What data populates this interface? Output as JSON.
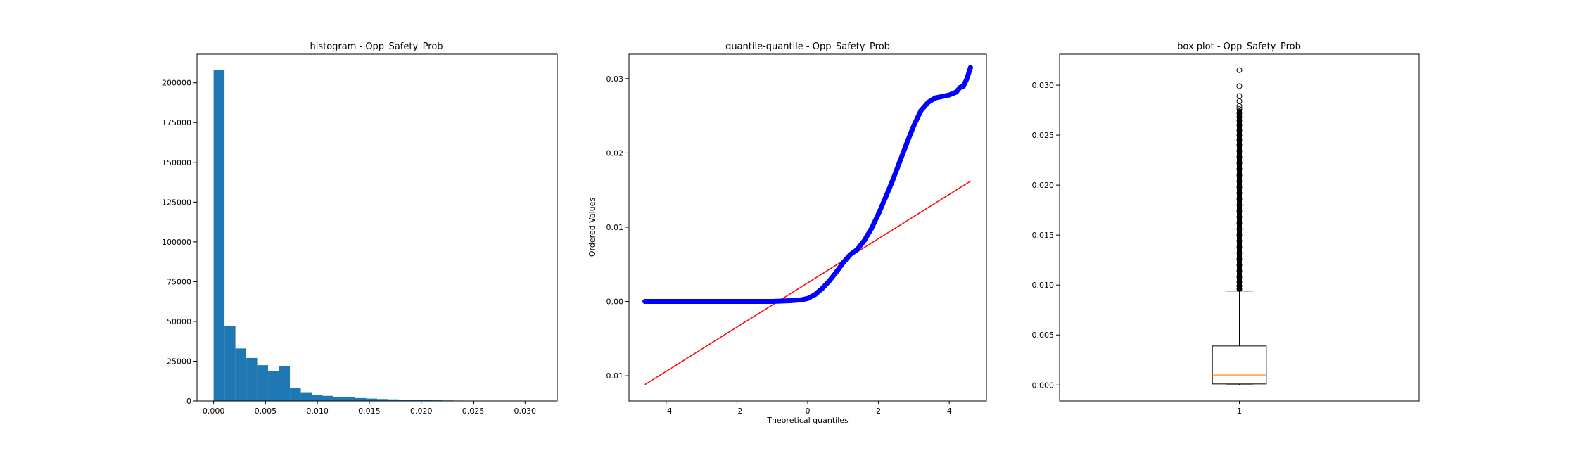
{
  "chart_data": [
    {
      "type": "bar",
      "title": "histogram - Opp_Safety_Prob",
      "xlabel": "",
      "ylabel": "",
      "bin_start": 0.0,
      "bin_width": 0.00105,
      "values": [
        208000,
        47000,
        33000,
        27000,
        22500,
        19000,
        22000,
        8000,
        5500,
        4000,
        3200,
        2600,
        2200,
        1800,
        1500,
        1200,
        1000,
        800,
        650,
        500,
        400,
        320,
        250,
        200,
        150,
        110,
        70,
        40,
        20,
        10
      ],
      "color": "#1f77b4",
      "xlim": [
        -0.0016,
        0.0331
      ],
      "ylim": [
        0,
        218000
      ],
      "xticks": [
        0.0,
        0.005,
        0.01,
        0.015,
        0.02,
        0.025,
        0.03
      ],
      "xtick_labels": [
        "0.000",
        "0.005",
        "0.010",
        "0.015",
        "0.020",
        "0.025",
        "0.030"
      ],
      "yticks": [
        0,
        25000,
        50000,
        75000,
        100000,
        125000,
        150000,
        175000,
        200000
      ],
      "ytick_labels": [
        "0",
        "25000",
        "50000",
        "75000",
        "100000",
        "125000",
        "150000",
        "175000",
        "200000"
      ]
    },
    {
      "type": "scatter",
      "title": "quantile-quantile - Opp_Safety_Prob",
      "xlabel": "Theoretical quantiles",
      "ylabel": "Ordered Values",
      "points": [
        [
          -4.6,
          0.0
        ],
        [
          -4.3,
          0.0
        ],
        [
          -4.1,
          0.0
        ],
        [
          -3.5,
          0.0
        ],
        [
          -3.0,
          0.0
        ],
        [
          -2.5,
          0.0
        ],
        [
          -2.0,
          0.0
        ],
        [
          -1.5,
          0.0
        ],
        [
          -1.0,
          0.0
        ],
        [
          -0.5,
          0.0001
        ],
        [
          -0.2,
          0.0002
        ],
        [
          0.0,
          0.0004
        ],
        [
          0.2,
          0.0009
        ],
        [
          0.4,
          0.0017
        ],
        [
          0.6,
          0.0027
        ],
        [
          0.8,
          0.0039
        ],
        [
          1.0,
          0.0052
        ],
        [
          1.2,
          0.0063
        ],
        [
          1.4,
          0.007
        ],
        [
          1.6,
          0.0082
        ],
        [
          1.8,
          0.0098
        ],
        [
          2.0,
          0.0118
        ],
        [
          2.2,
          0.014
        ],
        [
          2.4,
          0.0163
        ],
        [
          2.6,
          0.0188
        ],
        [
          2.8,
          0.0213
        ],
        [
          3.0,
          0.0237
        ],
        [
          3.2,
          0.0257
        ],
        [
          3.4,
          0.0268
        ],
        [
          3.6,
          0.0274
        ],
        [
          3.8,
          0.0276
        ],
        [
          4.0,
          0.0278
        ],
        [
          4.2,
          0.0282
        ],
        [
          4.3,
          0.0288
        ],
        [
          4.4,
          0.029
        ],
        [
          4.5,
          0.03
        ],
        [
          4.6,
          0.0315
        ]
      ],
      "fit_line": [
        [
          -4.6,
          -0.0112
        ],
        [
          4.6,
          0.0162
        ]
      ],
      "point_color": "#0000ff",
      "line_color": "#ff0000",
      "xlim": [
        -5.05,
        5.05
      ],
      "ylim": [
        -0.0134,
        0.0333
      ],
      "xticks": [
        -4,
        -2,
        0,
        2,
        4
      ],
      "xtick_labels": [
        "−4",
        "−2",
        "0",
        "2",
        "4"
      ],
      "yticks": [
        -0.01,
        0.0,
        0.01,
        0.02,
        0.03
      ],
      "ytick_labels": [
        "−0.01",
        "0.00",
        "0.01",
        "0.02",
        "0.03"
      ]
    },
    {
      "type": "box",
      "title": "box plot - Opp_Safety_Prob",
      "xlabel": "",
      "ylabel": "",
      "category": "1",
      "box": {
        "whisker_low": 0.0,
        "q1": 0.0001,
        "median": 0.001,
        "q3": 0.0039,
        "whisker_high": 0.0094
      },
      "outliers": [
        0.0315,
        0.0299,
        0.0289,
        0.0284,
        0.0279,
        0.0276,
        0.0272,
        0.0268,
        0.0264,
        0.026,
        0.0255,
        0.025,
        0.0245,
        0.024,
        0.0234,
        0.0228,
        0.0222,
        0.0216,
        0.021,
        0.0204,
        0.0198,
        0.0192,
        0.0186,
        0.018,
        0.0174,
        0.0168,
        0.0162,
        0.0156,
        0.015,
        0.0144,
        0.0138,
        0.0132,
        0.0126,
        0.012,
        0.0114,
        0.0108,
        0.0103,
        0.0099,
        0.0096
      ],
      "median_color": "#ff7f0e",
      "xlim": [
        0.5,
        1.5
      ],
      "ylim": [
        -0.0016,
        0.0331
      ],
      "yticks": [
        0.0,
        0.005,
        0.01,
        0.015,
        0.02,
        0.025,
        0.03
      ],
      "ytick_labels": [
        "0.000",
        "0.005",
        "0.010",
        "0.015",
        "0.020",
        "0.025",
        "0.030"
      ]
    }
  ]
}
